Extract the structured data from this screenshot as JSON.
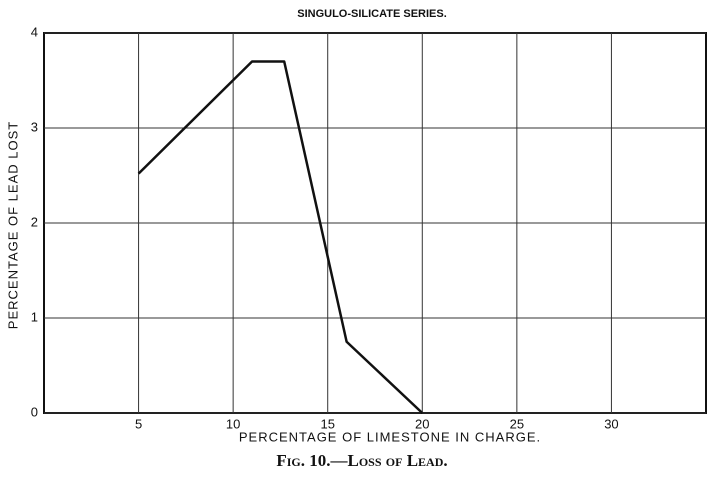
{
  "chart_data": {
    "type": "line",
    "title": "SINGULO-SILICATE SERIES.",
    "x_label": "PERCENTAGE OF LIMESTONE IN CHARGE.",
    "y_label": "PERCENTAGE OF LEAD LOST",
    "caption": "Fig. 10.—Loss of Lead.",
    "x": [
      5,
      11,
      12.7,
      16,
      20
    ],
    "series": [
      {
        "color": "#111111",
        "values": [
          2.52,
          3.7,
          3.7,
          0.75,
          0
        ]
      }
    ],
    "xlim": [
      0,
      35
    ],
    "xticks": [
      5,
      10,
      15,
      20,
      25,
      30
    ],
    "ylim": [
      0,
      4
    ],
    "yticks": [
      0,
      1,
      2,
      3,
      4
    ],
    "grid": true
  }
}
